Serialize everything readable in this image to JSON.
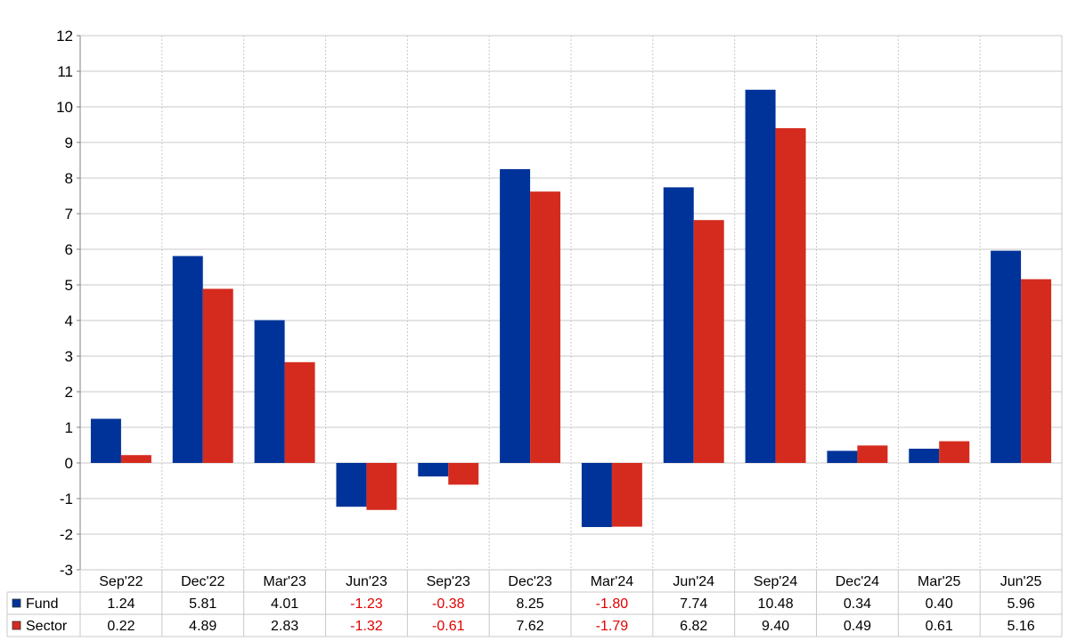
{
  "colors": {
    "fund": "#003399",
    "sector": "#d52b1e",
    "negative_text": "#e00000",
    "positive_text": "#000000",
    "grid": "#c8c8c8",
    "axis": "#808080"
  },
  "chart_data": {
    "type": "bar",
    "title": "",
    "xlabel": "",
    "ylabel": "",
    "ylim": [
      -3,
      12
    ],
    "yticks": [
      "12",
      "11",
      "10",
      "9",
      "8",
      "7",
      "6",
      "5",
      "4",
      "3",
      "2",
      "1",
      "0",
      "-1",
      "-2",
      "-3"
    ],
    "grid": true,
    "legend": "table-left",
    "categories": [
      "Sep'22",
      "Dec'22",
      "Mar'23",
      "Jun'23",
      "Sep'23",
      "Dec'23",
      "Mar'24",
      "Jun'24",
      "Sep'24",
      "Dec'24",
      "Mar'25",
      "Jun'25"
    ],
    "series": [
      {
        "name": "Fund",
        "values": [
          1.24,
          5.81,
          4.01,
          -1.23,
          -0.38,
          8.25,
          -1.8,
          7.74,
          10.48,
          0.34,
          0.4,
          5.96
        ],
        "labels": [
          "1.24",
          "5.81",
          "4.01",
          "-1.23",
          "-0.38",
          "8.25",
          "-1.80",
          "7.74",
          "10.48",
          "0.34",
          "0.40",
          "5.96"
        ]
      },
      {
        "name": "Sector",
        "values": [
          0.22,
          4.89,
          2.83,
          -1.32,
          -0.61,
          7.62,
          -1.79,
          6.82,
          9.4,
          0.49,
          0.61,
          5.16
        ],
        "labels": [
          "0.22",
          "4.89",
          "2.83",
          "-1.32",
          "-0.61",
          "7.62",
          "-1.79",
          "6.82",
          "9.40",
          "0.49",
          "0.61",
          "5.16"
        ]
      }
    ]
  }
}
